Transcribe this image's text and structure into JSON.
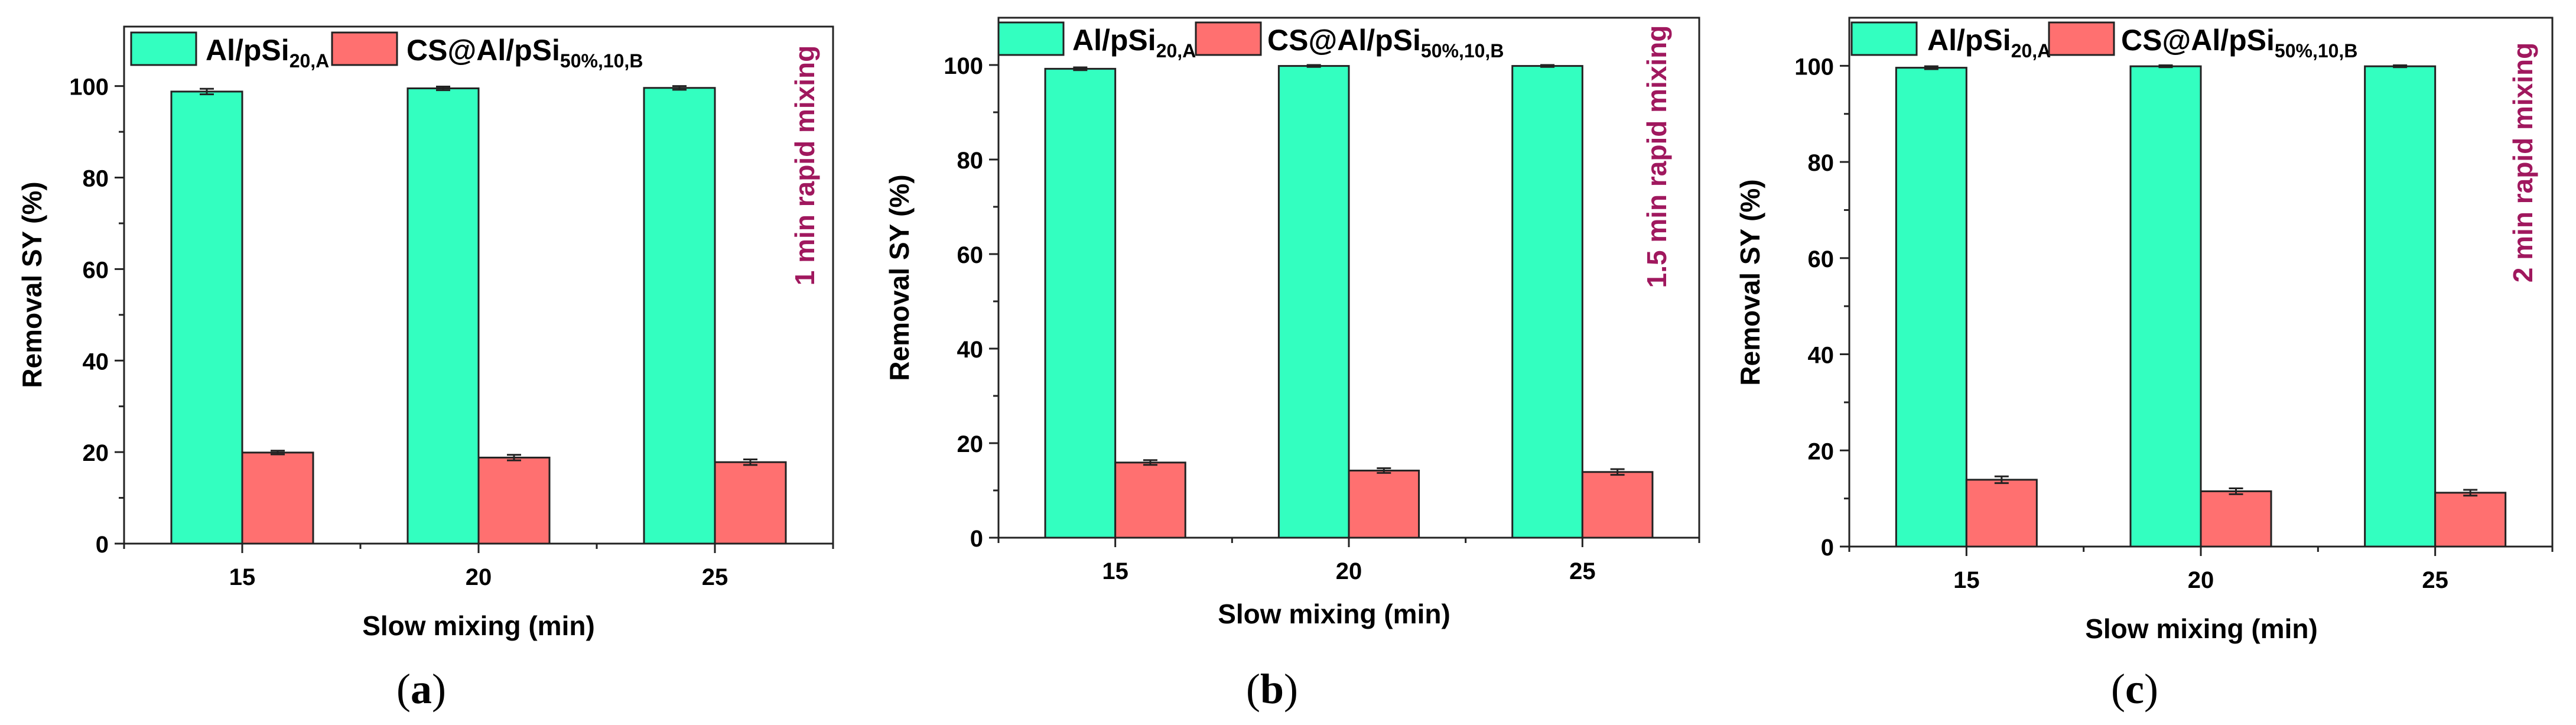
{
  "chart_data": [
    {
      "type": "bar",
      "panel_label": "(a)",
      "panel_letter": "a",
      "annotation": "1 min rapid mixing",
      "xlabel": "Slow mixing (min)",
      "ylabel": "Removal SY (%)",
      "ylim": [
        0,
        113
      ],
      "yticks": [
        0,
        20,
        40,
        60,
        80,
        100
      ],
      "categories": [
        "15",
        "20",
        "25"
      ],
      "series": [
        {
          "name": "Al/pSi20,A",
          "base": "Al/pSi",
          "sub": "20,A",
          "color": "#33FFC0",
          "values": [
            98.8,
            99.5,
            99.6
          ],
          "errors": [
            0.6,
            0.4,
            0.4
          ]
        },
        {
          "name": "CS@Al/pSi50%,10,B",
          "base": "CS@Al/pSi",
          "sub": "50%,10,B",
          "color": "#FF7070",
          "values": [
            19.9,
            18.8,
            17.8
          ],
          "errors": [
            0.4,
            0.6,
            0.6
          ]
        }
      ]
    },
    {
      "type": "bar",
      "panel_label": "(b)",
      "panel_letter": "b",
      "annotation": "1.5 min rapid mixing",
      "xlabel": "Slow mixing (min)",
      "ylabel": "Removal SY (%)",
      "ylim": [
        0,
        110
      ],
      "yticks": [
        0,
        20,
        40,
        60,
        80,
        100
      ],
      "categories": [
        "15",
        "20",
        "25"
      ],
      "series": [
        {
          "name": "Al/pSi20,A",
          "base": "Al/pSi",
          "sub": "20,A",
          "color": "#33FFC0",
          "values": [
            99.2,
            99.8,
            99.8
          ],
          "errors": [
            0.3,
            0.2,
            0.2
          ]
        },
        {
          "name": "CS@Al/pSi50%,10,B",
          "base": "CS@Al/pSi",
          "sub": "50%,10,B",
          "color": "#FF7070",
          "values": [
            15.9,
            14.2,
            13.9
          ],
          "errors": [
            0.5,
            0.5,
            0.6
          ]
        }
      ]
    },
    {
      "type": "bar",
      "panel_label": "(c)",
      "panel_letter": "c",
      "annotation": "2 min rapid mixing",
      "xlabel": "Slow mixing (min)",
      "ylabel": "Removal SY (%)",
      "ylim": [
        0,
        110
      ],
      "yticks": [
        0,
        20,
        40,
        60,
        80,
        100
      ],
      "categories": [
        "15",
        "20",
        "25"
      ],
      "series": [
        {
          "name": "Al/pSi20,A",
          "base": "Al/pSi",
          "sub": "20,A",
          "color": "#33FFC0",
          "values": [
            99.6,
            99.9,
            99.9
          ],
          "errors": [
            0.3,
            0.2,
            0.2
          ]
        },
        {
          "name": "CS@Al/pSi50%,10,B",
          "base": "CS@Al/pSi",
          "sub": "50%,10,B",
          "color": "#FF7070",
          "values": [
            13.9,
            11.5,
            11.2
          ],
          "errors": [
            0.7,
            0.6,
            0.6
          ]
        }
      ]
    }
  ]
}
